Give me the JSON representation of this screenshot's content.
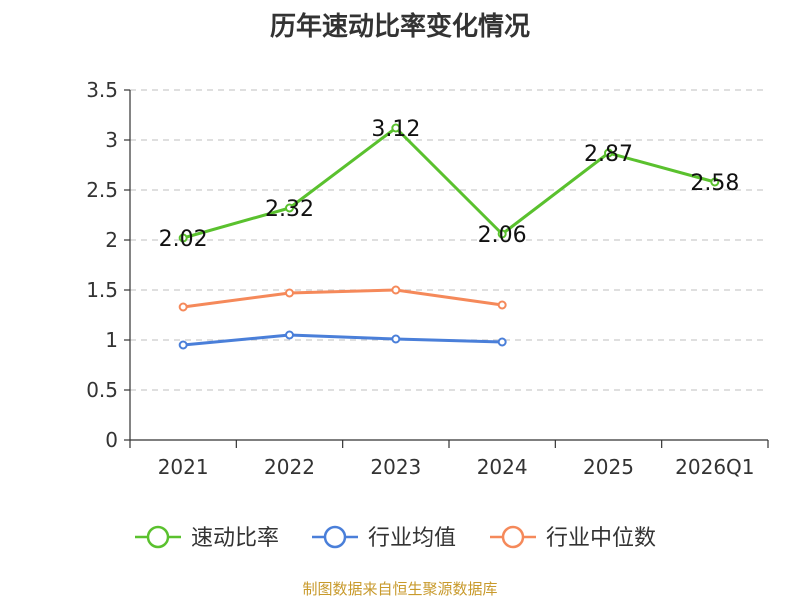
{
  "chart_data": {
    "type": "line",
    "title": "历年速动比率变化情况",
    "categories": [
      "2021",
      "2022",
      "2023",
      "2024",
      "2025",
      "2026Q1"
    ],
    "y_ticks": [
      "0",
      "0.5",
      "1",
      "1.5",
      "2",
      "2.5",
      "3",
      "3.5"
    ],
    "ylim": [
      0,
      3.5
    ],
    "grid": true,
    "legend_position": "bottom",
    "series": [
      {
        "name": "速动比率",
        "color": "#5ac12e",
        "show_labels": true,
        "values": [
          2.02,
          2.32,
          3.12,
          2.06,
          2.87,
          2.58
        ],
        "labels": [
          "2.02",
          "2.32",
          "3.12",
          "2.06",
          "2.87",
          "2.58"
        ]
      },
      {
        "name": "行业均值",
        "color": "#4a7fd9",
        "show_labels": false,
        "values": [
          0.95,
          1.05,
          1.01,
          0.98,
          null,
          null
        ]
      },
      {
        "name": "行业中位数",
        "color": "#f5895a",
        "show_labels": false,
        "values": [
          1.33,
          1.47,
          1.5,
          1.35,
          null,
          null
        ]
      }
    ]
  },
  "source_note": "制图数据来自恒生聚源数据库"
}
